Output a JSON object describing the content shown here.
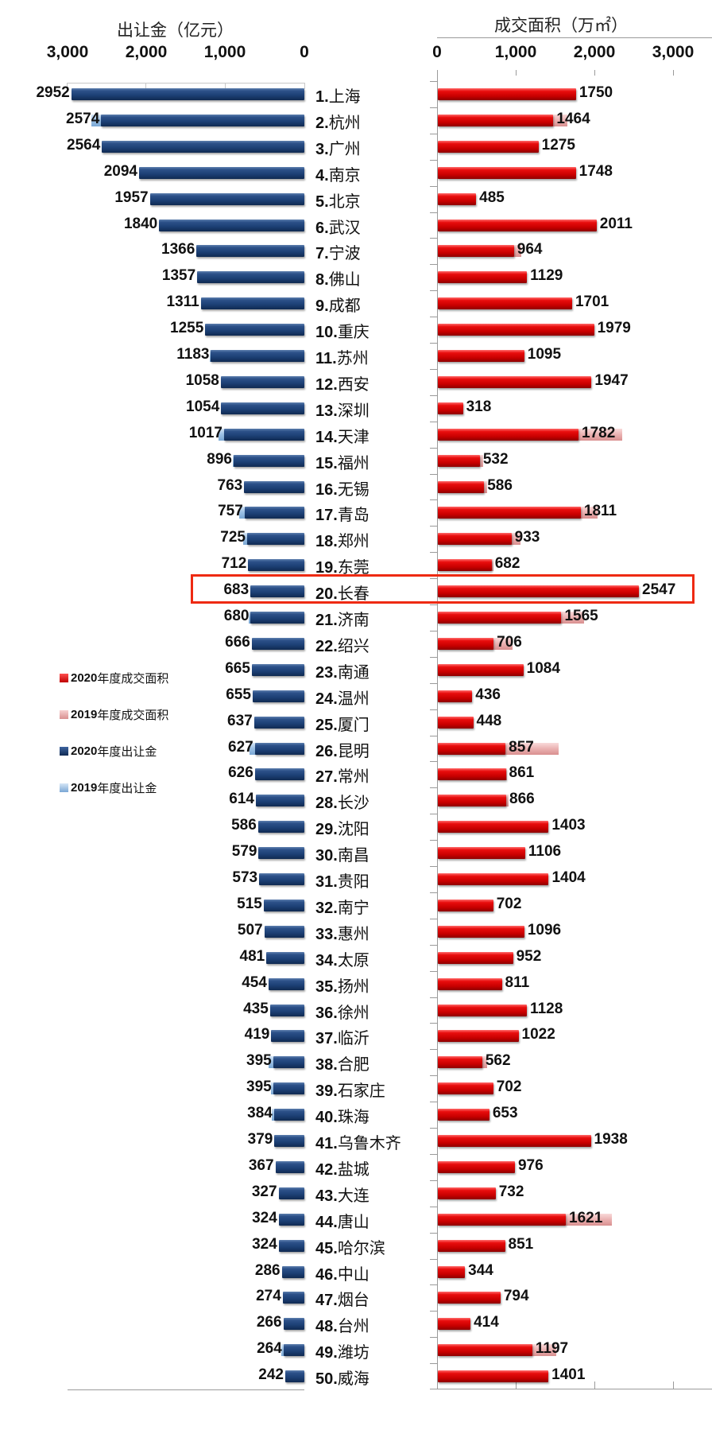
{
  "chart_data": {
    "type": "bar",
    "orientation": "horizontal",
    "layout": "butterfly (two mirrored bar charts sharing a city-label axis)",
    "left_panel": {
      "title": "出让金（亿元）",
      "axis_ticks": [
        "3,000",
        "2,000",
        "1,000",
        "0"
      ],
      "xlim": [
        0,
        3000
      ],
      "direction": "right-to-left",
      "series": [
        {
          "name": "2020年度出让金",
          "color": "#1c3f74"
        },
        {
          "name": "2019年度出让金",
          "color": "#9ec2e6"
        }
      ]
    },
    "right_panel": {
      "title": "成交面积（万㎡）",
      "axis_ticks": [
        "0",
        "1,000",
        "2,000",
        "3,000"
      ],
      "xlim": [
        0,
        3000
      ],
      "direction": "left-to-right",
      "series": [
        {
          "name": "2020年度成交面积",
          "color": "#d40000"
        },
        {
          "name": "2019年度成交面积",
          "color": "#eab1b1"
        }
      ]
    },
    "highlighted_row": "20.长春",
    "categories": [
      "1.上海",
      "2.杭州",
      "3.广州",
      "4.南京",
      "5.北京",
      "6.武汉",
      "7.宁波",
      "8.佛山",
      "9.成都",
      "10.重庆",
      "11.苏州",
      "12.西安",
      "13.深圳",
      "14.天津",
      "15.福州",
      "16.无锡",
      "17.青岛",
      "18.郑州",
      "19.东莞",
      "20.长春",
      "21.济南",
      "22.绍兴",
      "23.南通",
      "24.温州",
      "25.厦门",
      "26.昆明",
      "27.常州",
      "28.长沙",
      "29.沈阳",
      "30.南昌",
      "31.贵阳",
      "32.南宁",
      "33.惠州",
      "34.太原",
      "35.扬州",
      "36.徐州",
      "37.临沂",
      "38.合肥",
      "39.石家庄",
      "40.珠海",
      "41.乌鲁木齐",
      "42.盐城",
      "43.大连",
      "44.唐山",
      "45.哈尔滨",
      "46.中山",
      "47.烟台",
      "48.台州",
      "49.潍坊",
      "50.威海"
    ],
    "series": [
      {
        "name": "2020年度出让金",
        "unit": "亿元",
        "values": [
          2952,
          2574,
          2564,
          2094,
          1957,
          1840,
          1366,
          1357,
          1311,
          1255,
          1183,
          1058,
          1054,
          1017,
          896,
          763,
          757,
          725,
          712,
          683,
          680,
          666,
          665,
          655,
          637,
          627,
          626,
          614,
          586,
          579,
          573,
          515,
          507,
          481,
          454,
          435,
          419,
          395,
          395,
          384,
          379,
          367,
          327,
          324,
          324,
          286,
          274,
          266,
          264,
          242
        ]
      },
      {
        "name": "2019年度出让金",
        "unit": "亿元",
        "note": "shown only as lighter overhang where 2019 > 2020; values estimated from pixels (null = hidden behind 2020 bar)",
        "values": [
          null,
          2700,
          null,
          null,
          null,
          null,
          null,
          null,
          null,
          null,
          1200,
          null,
          null,
          1090,
          910,
          null,
          830,
          780,
          null,
          null,
          700,
          null,
          null,
          null,
          null,
          690,
          null,
          null,
          null,
          null,
          null,
          null,
          null,
          null,
          null,
          null,
          null,
          450,
          420,
          410,
          null,
          null,
          null,
          null,
          null,
          null,
          null,
          null,
          290,
          null
        ]
      },
      {
        "name": "2020年度成交面积",
        "unit": "万㎡",
        "values": [
          1750,
          1464,
          1275,
          1748,
          485,
          2011,
          964,
          1129,
          1701,
          1979,
          1095,
          1947,
          318,
          1782,
          532,
          586,
          1811,
          933,
          682,
          2547,
          1565,
          706,
          1084,
          436,
          448,
          857,
          861,
          866,
          1403,
          1106,
          1404,
          702,
          1096,
          952,
          811,
          1128,
          1022,
          562,
          702,
          653,
          1938,
          976,
          732,
          1621,
          851,
          344,
          794,
          414,
          1197,
          1401
        ]
      },
      {
        "name": "2019年度成交面积",
        "unit": "万㎡",
        "note": "shown only as lighter overhang where 2019 > 2020; values estimated from pixels (null = hidden behind 2020 bar)",
        "values": [
          null,
          1640,
          null,
          null,
          null,
          null,
          1060,
          null,
          null,
          null,
          null,
          null,
          null,
          2340,
          570,
          620,
          2020,
          1050,
          700,
          null,
          1850,
          950,
          null,
          null,
          null,
          1530,
          880,
          900,
          null,
          null,
          null,
          null,
          null,
          null,
          null,
          null,
          null,
          620,
          null,
          null,
          null,
          null,
          null,
          2200,
          null,
          null,
          null,
          null,
          1500,
          null
        ]
      }
    ]
  },
  "left": {
    "title": "出让金（亿元）",
    "ticks": [
      "3,000",
      "2,000",
      "1,000",
      "0"
    ]
  },
  "right": {
    "title": "成交面积（万㎡）",
    "ticks": [
      "0",
      "1,000",
      "2,000",
      "3,000"
    ]
  },
  "legend": [
    {
      "year": "2020",
      "text": "年度成交面积",
      "color": "#d40000"
    },
    {
      "year": "2019",
      "text": "年度成交面积",
      "color": "#e7a7a7"
    },
    {
      "year": "2020",
      "text": "年度出让金",
      "color": "#1c3f74"
    },
    {
      "year": "2019",
      "text": "年度出让金",
      "color": "#8fb6df"
    }
  ],
  "highlight": {
    "rank": 20,
    "color": "#ee2a12"
  }
}
